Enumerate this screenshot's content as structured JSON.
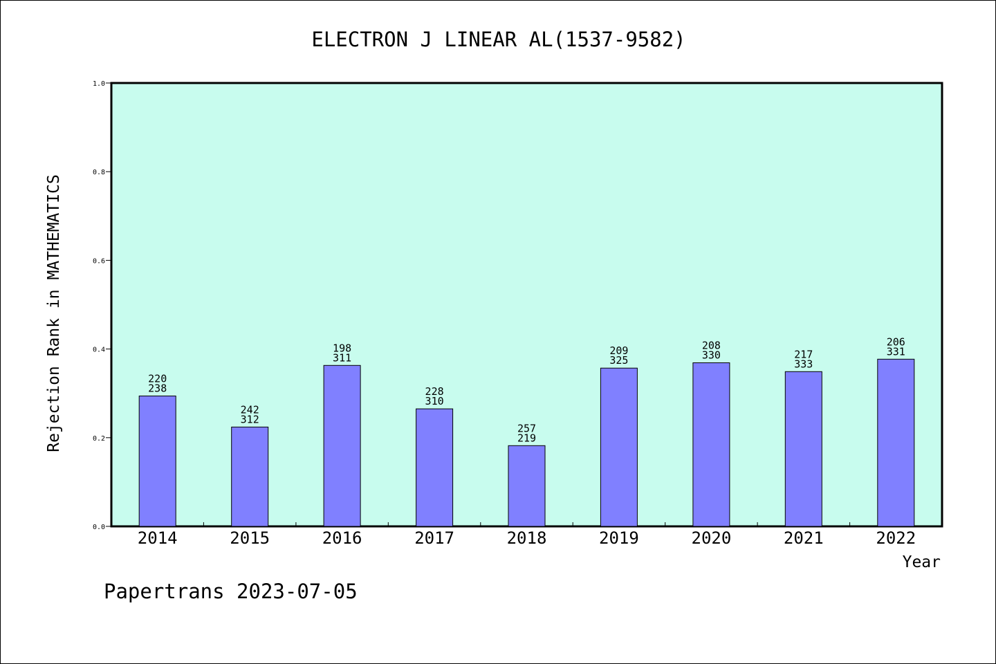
{
  "chart_data": {
    "type": "bar",
    "title": "ELECTRON J LINEAR AL(1537-9582)",
    "xlabel": "Year",
    "ylabel": "Rejection Rank in MATHEMATICS",
    "ylim": [
      0,
      1.0
    ],
    "yticks": [
      "0.0",
      "0.2",
      "0.4",
      "0.6",
      "0.8",
      "1.0"
    ],
    "grid": false,
    "categories": [
      "2014",
      "2015",
      "2016",
      "2017",
      "2018",
      "2019",
      "2020",
      "2021",
      "2022"
    ],
    "values": [
      0.294,
      0.224,
      0.363,
      0.265,
      0.182,
      0.357,
      0.369,
      0.349,
      0.377
    ],
    "labels_top": [
      "220",
      "242",
      "198",
      "228",
      "257",
      "209",
      "208",
      "217",
      "206"
    ],
    "labels_bottom": [
      "238",
      "312",
      "311",
      "310",
      "219",
      "325",
      "330",
      "333",
      "331"
    ]
  },
  "footer": "Papertrans 2023-07-05",
  "colors": {
    "plot_background": "#c8fcee",
    "bar_fill": "#8080ff",
    "bar_stroke": "#000000",
    "axis": "#000000"
  }
}
